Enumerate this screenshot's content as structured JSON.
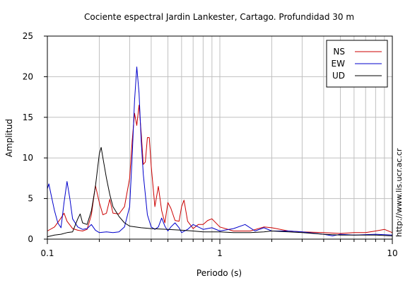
{
  "chart_data": {
    "type": "line",
    "title": "Cociente espectral Jardin Lankester, Cartago. Profundidad 30 m",
    "xlabel": "Periodo (s)",
    "ylabel": "Amplitud",
    "xscale": "log",
    "xlim": [
      0.1,
      10
    ],
    "ylim": [
      0,
      25
    ],
    "x_ticks": [
      0.1,
      1,
      10
    ],
    "x_tick_labels": [
      "0.1",
      "1",
      "10"
    ],
    "y_ticks": [
      0,
      5,
      10,
      15,
      20,
      25
    ],
    "y_tick_labels": [
      "0",
      "5",
      "10",
      "15",
      "20",
      "25"
    ],
    "grid": true,
    "legend_position": "top-right",
    "credit": "http://www.lis.ucr.ac.cr",
    "series": [
      {
        "name": "NS",
        "color": "#cc0000",
        "points": [
          [
            0.1,
            1.0
          ],
          [
            0.11,
            1.5
          ],
          [
            0.12,
            2.6
          ],
          [
            0.125,
            3.2
          ],
          [
            0.13,
            2.2
          ],
          [
            0.14,
            1.3
          ],
          [
            0.15,
            1.1
          ],
          [
            0.16,
            1.0
          ],
          [
            0.17,
            1.2
          ],
          [
            0.18,
            3.0
          ],
          [
            0.19,
            6.6
          ],
          [
            0.2,
            4.5
          ],
          [
            0.21,
            3.0
          ],
          [
            0.22,
            3.2
          ],
          [
            0.23,
            4.9
          ],
          [
            0.24,
            3.2
          ],
          [
            0.26,
            3.1
          ],
          [
            0.28,
            4.0
          ],
          [
            0.3,
            7.5
          ],
          [
            0.31,
            12.0
          ],
          [
            0.32,
            15.5
          ],
          [
            0.33,
            14.0
          ],
          [
            0.34,
            16.5
          ],
          [
            0.35,
            13.0
          ],
          [
            0.36,
            9.2
          ],
          [
            0.37,
            9.5
          ],
          [
            0.38,
            12.5
          ],
          [
            0.39,
            12.5
          ],
          [
            0.4,
            9.0
          ],
          [
            0.42,
            4.0
          ],
          [
            0.44,
            6.5
          ],
          [
            0.46,
            3.5
          ],
          [
            0.48,
            2.0
          ],
          [
            0.5,
            4.5
          ],
          [
            0.52,
            3.8
          ],
          [
            0.55,
            2.3
          ],
          [
            0.58,
            2.2
          ],
          [
            0.6,
            4.0
          ],
          [
            0.62,
            4.8
          ],
          [
            0.65,
            2.2
          ],
          [
            0.7,
            1.3
          ],
          [
            0.75,
            1.8
          ],
          [
            0.8,
            1.8
          ],
          [
            0.85,
            2.3
          ],
          [
            0.9,
            2.5
          ],
          [
            1.0,
            1.5
          ],
          [
            1.2,
            1.0
          ],
          [
            1.5,
            1.0
          ],
          [
            1.8,
            1.5
          ],
          [
            2.0,
            1.4
          ],
          [
            2.5,
            1.0
          ],
          [
            3.0,
            0.9
          ],
          [
            4.0,
            0.8
          ],
          [
            5.0,
            0.7
          ],
          [
            6.0,
            0.8
          ],
          [
            7.0,
            0.8
          ],
          [
            8.0,
            1.0
          ],
          [
            9.0,
            1.2
          ],
          [
            10.0,
            0.8
          ]
        ]
      },
      {
        "name": "EW",
        "color": "#0000cc",
        "points": [
          [
            0.1,
            6.2
          ],
          [
            0.102,
            6.8
          ],
          [
            0.105,
            5.5
          ],
          [
            0.11,
            3.5
          ],
          [
            0.115,
            2.0
          ],
          [
            0.12,
            1.4
          ],
          [
            0.125,
            4.5
          ],
          [
            0.13,
            7.1
          ],
          [
            0.135,
            5.0
          ],
          [
            0.14,
            2.5
          ],
          [
            0.15,
            1.5
          ],
          [
            0.16,
            1.2
          ],
          [
            0.17,
            1.3
          ],
          [
            0.18,
            1.8
          ],
          [
            0.19,
            1.1
          ],
          [
            0.2,
            0.8
          ],
          [
            0.22,
            0.9
          ],
          [
            0.24,
            0.8
          ],
          [
            0.26,
            0.9
          ],
          [
            0.28,
            1.5
          ],
          [
            0.3,
            4.0
          ],
          [
            0.31,
            10.0
          ],
          [
            0.32,
            17.0
          ],
          [
            0.33,
            21.2
          ],
          [
            0.34,
            18.0
          ],
          [
            0.35,
            12.0
          ],
          [
            0.36,
            8.0
          ],
          [
            0.37,
            5.5
          ],
          [
            0.38,
            3.0
          ],
          [
            0.4,
            1.5
          ],
          [
            0.42,
            1.2
          ],
          [
            0.44,
            1.5
          ],
          [
            0.46,
            2.6
          ],
          [
            0.48,
            1.6
          ],
          [
            0.5,
            1.0
          ],
          [
            0.52,
            1.5
          ],
          [
            0.55,
            2.0
          ],
          [
            0.58,
            1.4
          ],
          [
            0.6,
            0.8
          ],
          [
            0.65,
            1.2
          ],
          [
            0.7,
            1.8
          ],
          [
            0.75,
            1.5
          ],
          [
            0.8,
            1.2
          ],
          [
            0.9,
            1.4
          ],
          [
            1.0,
            1.0
          ],
          [
            1.2,
            1.3
          ],
          [
            1.4,
            1.8
          ],
          [
            1.6,
            1.0
          ],
          [
            1.8,
            1.4
          ],
          [
            2.0,
            1.0
          ],
          [
            2.5,
            1.0
          ],
          [
            3.0,
            0.9
          ],
          [
            4.0,
            0.6
          ],
          [
            4.5,
            0.4
          ],
          [
            5.0,
            0.6
          ],
          [
            6.0,
            0.5
          ],
          [
            8.0,
            0.6
          ],
          [
            10.0,
            0.5
          ]
        ]
      },
      {
        "name": "UD",
        "color": "#000000",
        "points": [
          [
            0.1,
            0.3
          ],
          [
            0.11,
            0.5
          ],
          [
            0.12,
            0.6
          ],
          [
            0.13,
            0.8
          ],
          [
            0.14,
            0.9
          ],
          [
            0.15,
            2.5
          ],
          [
            0.155,
            3.1
          ],
          [
            0.16,
            2.0
          ],
          [
            0.17,
            1.8
          ],
          [
            0.18,
            3.5
          ],
          [
            0.19,
            6.5
          ],
          [
            0.2,
            10.5
          ],
          [
            0.205,
            11.3
          ],
          [
            0.21,
            10.0
          ],
          [
            0.22,
            7.5
          ],
          [
            0.23,
            5.5
          ],
          [
            0.24,
            4.0
          ],
          [
            0.26,
            2.8
          ],
          [
            0.28,
            2.0
          ],
          [
            0.3,
            1.6
          ],
          [
            0.35,
            1.4
          ],
          [
            0.4,
            1.3
          ],
          [
            0.5,
            1.2
          ],
          [
            0.6,
            1.1
          ],
          [
            0.7,
            1.0
          ],
          [
            0.8,
            0.9
          ],
          [
            1.0,
            0.9
          ],
          [
            1.2,
            0.8
          ],
          [
            1.5,
            0.8
          ],
          [
            1.8,
            0.9
          ],
          [
            2.0,
            1.0
          ],
          [
            2.5,
            0.9
          ],
          [
            3.0,
            0.8
          ],
          [
            4.0,
            0.6
          ],
          [
            5.0,
            0.5
          ],
          [
            6.0,
            0.5
          ],
          [
            8.0,
            0.5
          ],
          [
            10.0,
            0.4
          ]
        ]
      }
    ]
  }
}
